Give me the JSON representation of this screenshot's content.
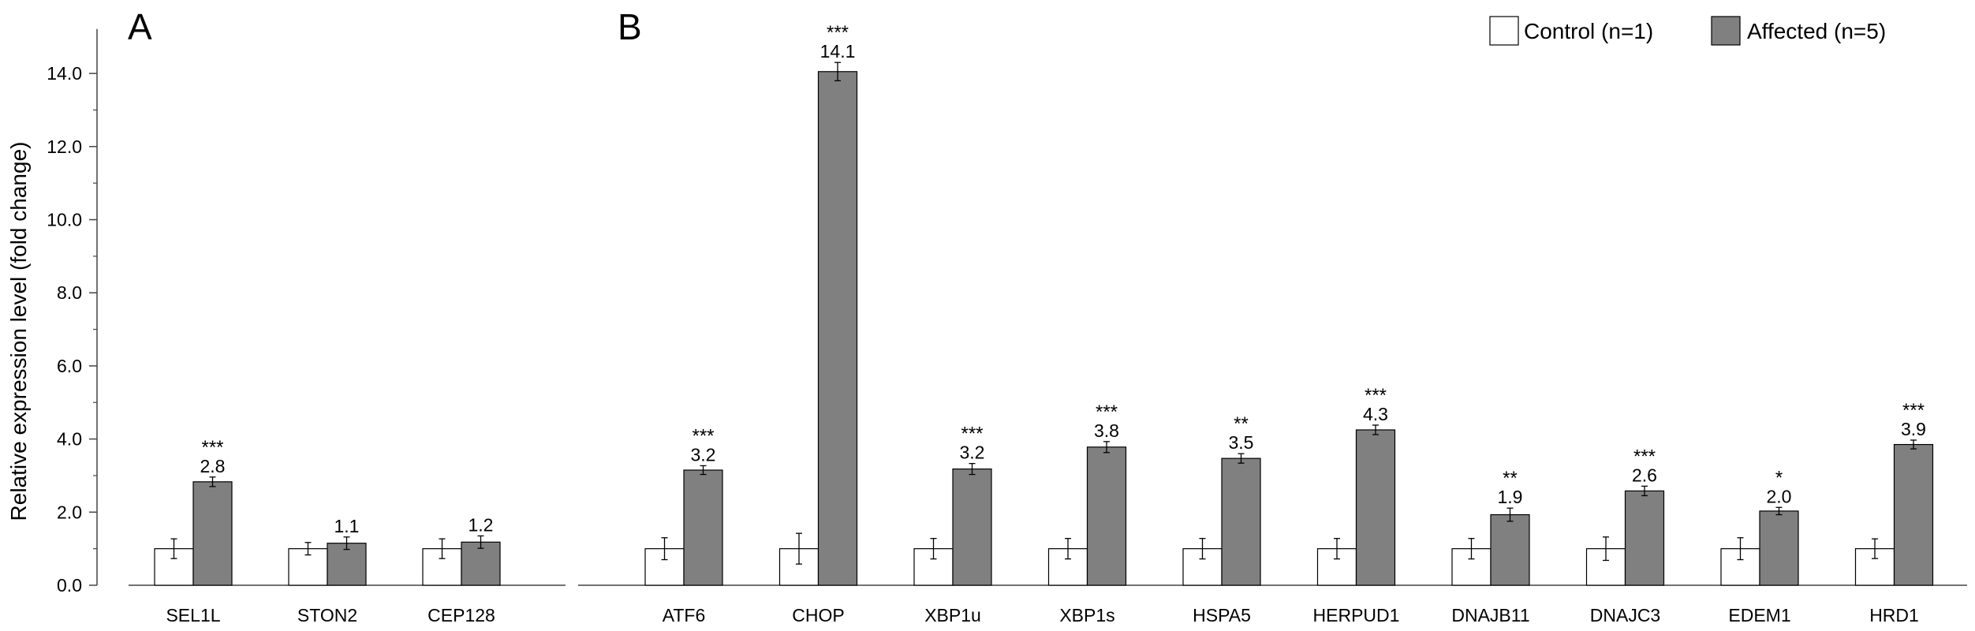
{
  "chart_data": {
    "type": "bar",
    "ylabel": "Relative expression level (fold change)",
    "ylim": [
      0,
      15
    ],
    "yticks": [
      0,
      2,
      4,
      6,
      8,
      10,
      12,
      14
    ],
    "ytick_labels": [
      "0.0",
      "2.0",
      "4.0",
      "6.0",
      "8.0",
      "10.0",
      "12.0",
      "14.0"
    ],
    "panels": [
      {
        "label": "A",
        "categories": [
          "SEL1L",
          "STON2",
          "CEP128"
        ],
        "control": [
          1.0,
          1.0,
          1.0
        ],
        "control_err": [
          0.27,
          0.17,
          0.27
        ],
        "affected": [
          2.83,
          1.15,
          1.18
        ],
        "affected_err": [
          0.13,
          0.17,
          0.17
        ],
        "value_labels": [
          "2.8",
          "1.1",
          "1.2"
        ],
        "significance": [
          "***",
          "",
          ""
        ]
      },
      {
        "label": "B",
        "categories": [
          "ATF6",
          "CHOP",
          "XBP1u",
          "XBP1s",
          "HSPA5",
          "HERPUD1",
          "DNAJB11",
          "DNAJC3",
          "EDEM1",
          "HRD1"
        ],
        "control": [
          1.0,
          1.0,
          1.0,
          1.0,
          1.0,
          1.0,
          1.0,
          1.0,
          1.0,
          1.0
        ],
        "control_err": [
          0.3,
          0.42,
          0.28,
          0.28,
          0.28,
          0.28,
          0.28,
          0.32,
          0.3,
          0.27
        ],
        "affected": [
          3.15,
          14.05,
          3.18,
          3.78,
          3.47,
          4.25,
          1.93,
          2.58,
          2.03,
          3.85
        ],
        "affected_err": [
          0.12,
          0.25,
          0.15,
          0.15,
          0.13,
          0.13,
          0.18,
          0.13,
          0.1,
          0.12
        ],
        "value_labels": [
          "3.2",
          "14.1",
          "3.2",
          "3.8",
          "3.5",
          "4.3",
          "1.9",
          "2.6",
          "2.0",
          "3.9"
        ],
        "significance": [
          "***",
          "***",
          "***",
          "***",
          "**",
          "***",
          "**",
          "***",
          "*",
          "***"
        ]
      }
    ],
    "series": [
      {
        "name": "Control (n=1)",
        "color": "#ffffff"
      },
      {
        "name": "Affected (n=5)",
        "color": "#808080"
      }
    ],
    "legend_position": "top-right"
  }
}
